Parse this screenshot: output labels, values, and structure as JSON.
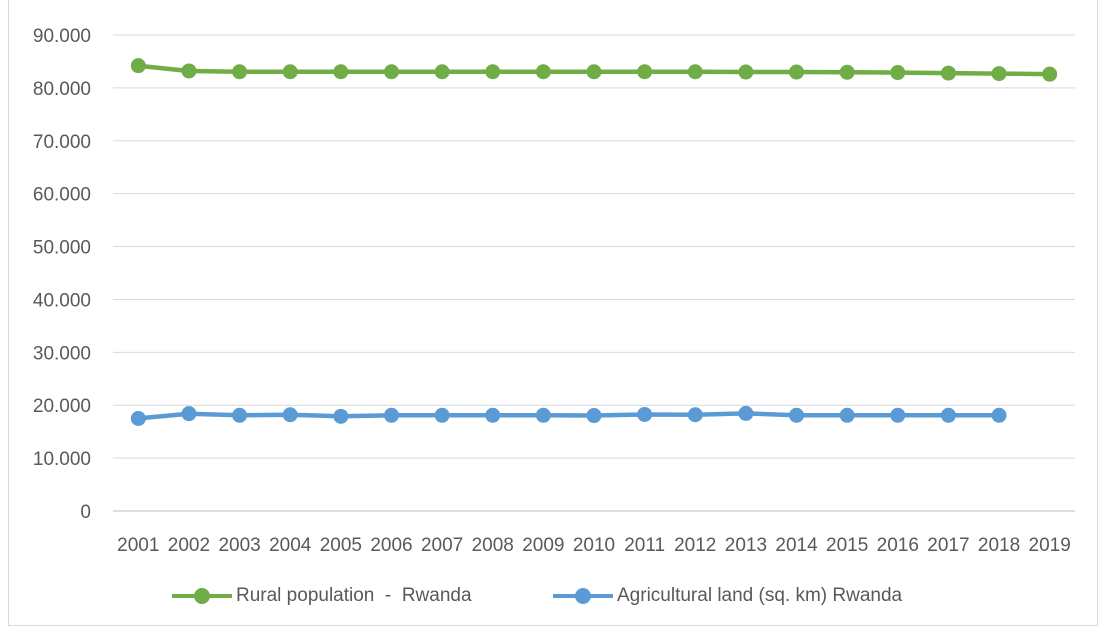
{
  "chart_data": {
    "type": "line",
    "title": "",
    "xlabel": "",
    "ylabel": "",
    "ylim": [
      0,
      90000
    ],
    "y_ticks": [
      "0",
      "10.000",
      "20.000",
      "30.000",
      "40.000",
      "50.000",
      "60.000",
      "70.000",
      "80.000",
      "90.000"
    ],
    "y_tick_values": [
      0,
      10000,
      20000,
      30000,
      40000,
      50000,
      60000,
      70000,
      80000,
      90000
    ],
    "grid": true,
    "legend_position": "bottom",
    "categories": [
      "2001",
      "2002",
      "2003",
      "2004",
      "2005",
      "2006",
      "2007",
      "2008",
      "2009",
      "2010",
      "2011",
      "2012",
      "2013",
      "2014",
      "2015",
      "2016",
      "2017",
      "2018",
      "2019"
    ],
    "series": [
      {
        "name": "Rural population  -  Rwanda",
        "color": "#70ad47",
        "values": [
          84200,
          83200,
          83050,
          83050,
          83050,
          83050,
          83050,
          83050,
          83050,
          83050,
          83050,
          83050,
          83000,
          83000,
          82950,
          82900,
          82800,
          82700,
          82600
        ]
      },
      {
        "name": "Agricultural land (sq. km) Rwanda",
        "color": "#5b9bd5",
        "values": [
          17500,
          18400,
          18100,
          18200,
          17900,
          18100,
          18100,
          18100,
          18100,
          18050,
          18250,
          18200,
          18450,
          18100,
          18100,
          18100,
          18100,
          18100,
          null
        ]
      }
    ]
  }
}
